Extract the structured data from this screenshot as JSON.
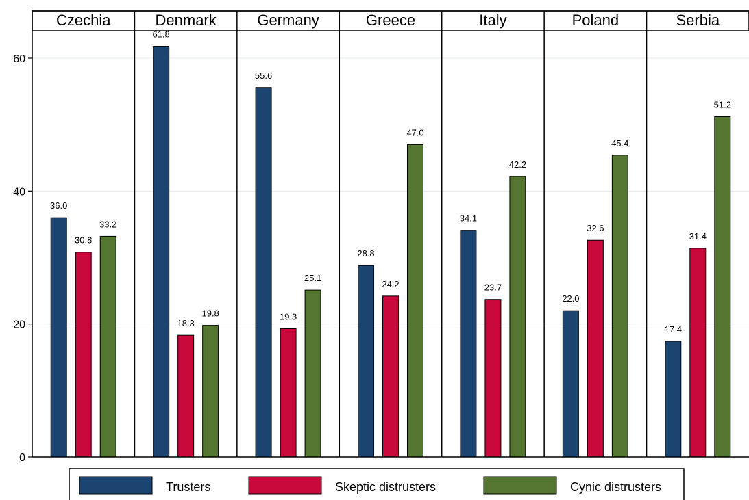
{
  "chart_data": {
    "type": "bar",
    "layout": "faceted-by-country",
    "panels": [
      "Czechia",
      "Denmark",
      "Germany",
      "Greece",
      "Italy",
      "Poland",
      "Serbia"
    ],
    "series": [
      {
        "name": "Trusters",
        "color": "#1b4470",
        "values": [
          36.0,
          61.8,
          55.6,
          28.8,
          34.1,
          22.0,
          17.4
        ]
      },
      {
        "name": "Skeptic distrusters",
        "color": "#c8073a",
        "values": [
          30.8,
          18.3,
          19.3,
          24.2,
          23.7,
          32.6,
          31.4
        ]
      },
      {
        "name": "Cynic distrusters",
        "color": "#557630",
        "values": [
          33.2,
          19.8,
          25.1,
          47.0,
          42.2,
          45.4,
          51.2
        ]
      }
    ],
    "data_labels": [
      [
        "36.0",
        "30.8",
        "33.2"
      ],
      [
        "61.8",
        "18.3",
        "19.8"
      ],
      [
        "55.6",
        "19.3",
        "25.1"
      ],
      [
        "28.8",
        "24.2",
        "47.0"
      ],
      [
        "34.1",
        "23.7",
        "42.2"
      ],
      [
        "22.0",
        "32.6",
        "45.4"
      ],
      [
        "17.4",
        "31.4",
        "51.2"
      ]
    ],
    "y_ticks": [
      0,
      20,
      40,
      60
    ],
    "y_tick_labels": [
      "0",
      "20",
      "40",
      "60"
    ],
    "ylim": [
      0,
      64
    ],
    "title": "",
    "xlabel": "",
    "ylabel": "",
    "grid": true,
    "legend_position": "bottom"
  }
}
